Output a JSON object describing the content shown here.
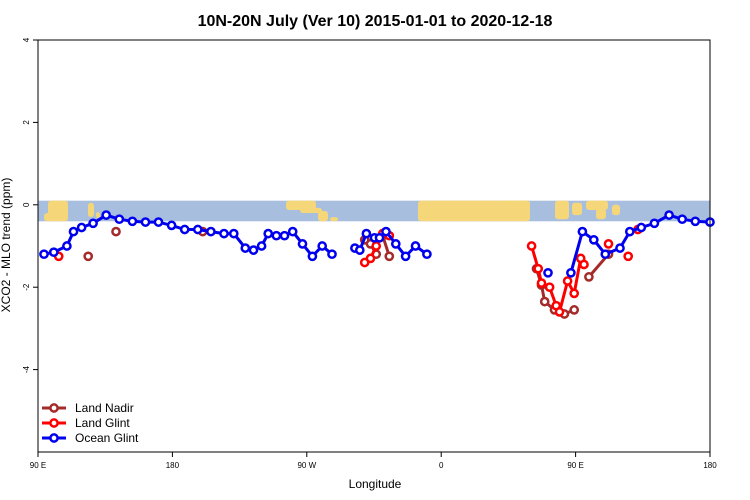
{
  "chart_data": {
    "type": "line",
    "title": "10N-20N July (Ver 10)   2015-01-01 to 2020-12-18",
    "xlabel": "Longitude",
    "ylabel": "XCO2 - MLO trend (ppm)",
    "xlim": [
      90,
      450
    ],
    "ylim": [
      -6,
      4
    ],
    "x_ticks": [
      {
        "value": 90,
        "label": "90 E"
      },
      {
        "value": 180,
        "label": "180"
      },
      {
        "value": 270,
        "label": "90 W"
      },
      {
        "value": 360,
        "label": "0"
      },
      {
        "value": 450,
        "label": "90 E"
      },
      {
        "value": 540,
        "label": "180"
      }
    ],
    "y_ticks": [
      {
        "value": 4,
        "label": "4"
      },
      {
        "value": 2,
        "label": "2"
      },
      {
        "value": 0,
        "label": "0"
      },
      {
        "value": -2,
        "label": "-2"
      },
      {
        "value": -4,
        "label": "-4"
      }
    ],
    "grid": false,
    "legend_position": "bottom-left",
    "colors": {
      "land_nadir": "#a52a2a",
      "land_glint": "#ff0000",
      "ocean_glint": "#0000ee",
      "map_ocean": "#a8bedf",
      "map_land": "#f5d77a"
    },
    "map_band_y": [
      0.1,
      -0.4
    ],
    "series": [
      {
        "name": "Land Nadir",
        "color": "#a52a2a",
        "segments": [
          [
            [
              270,
              -0.85
            ],
            [
              273.5,
              -0.95
            ],
            [
              277,
              -1.2
            ]
          ],
          [
            [
              281,
              -0.75
            ],
            [
              285,
              -1.25
            ]
          ],
          [
            [
              375,
              -1.55
            ],
            [
              378,
              -1.95
            ],
            [
              380,
              -2.35
            ],
            [
              386,
              -2.55
            ],
            [
              392,
              -2.65
            ],
            [
              398,
              -2.55
            ]
          ],
          [
            [
              407,
              -1.75
            ],
            [
              419,
              -1.2
            ]
          ]
        ],
        "points": [
          [
            101,
            -1.25
          ],
          [
            118,
            -0.65
          ],
          [
            171,
            -0.65
          ]
        ]
      },
      {
        "name": "Land Glint",
        "color": "#ff0000",
        "segments": [
          [
            [
              270,
              -1.4
            ],
            [
              273.5,
              -1.3
            ],
            [
              277,
              -1.0
            ],
            [
              281,
              -0.7
            ],
            [
              285,
              -0.75
            ]
          ],
          [
            [
              372,
              -1.0
            ],
            [
              376,
              -1.55
            ],
            [
              378,
              -1.9
            ],
            [
              383,
              -2.0
            ],
            [
              387,
              -2.45
            ],
            [
              389,
              -2.6
            ],
            [
              394,
              -1.85
            ],
            [
              398,
              -2.15
            ],
            [
              402,
              -1.3
            ]
          ],
          [
            [
              419,
              -0.95
            ]
          ]
        ],
        "points": [
          [
            83,
            -1.25
          ],
          [
            404,
            -1.45
          ],
          [
            431,
            -1.25
          ],
          [
            437,
            -0.6
          ]
        ]
      },
      {
        "name": "Ocean Glint",
        "color": "#0000ee",
        "segments": [
          [
            [
              74,
              -1.2
            ],
            [
              80,
              -1.15
            ],
            [
              88,
              -1.0
            ],
            [
              92,
              -0.65
            ],
            [
              97,
              -0.55
            ],
            [
              104,
              -0.45
            ],
            [
              112,
              -0.25
            ],
            [
              120,
              -0.35
            ],
            [
              128,
              -0.4
            ],
            [
              136,
              -0.42
            ],
            [
              144,
              -0.42
            ],
            [
              152,
              -0.5
            ],
            [
              160,
              -0.6
            ],
            [
              168,
              -0.6
            ],
            [
              176,
              -0.65
            ],
            [
              184,
              -0.7
            ],
            [
              190,
              -0.7
            ],
            [
              197,
              -1.05
            ],
            [
              202,
              -1.1
            ],
            [
              207,
              -1.0
            ],
            [
              211,
              -0.7
            ],
            [
              216,
              -0.75
            ],
            [
              221,
              -0.75
            ],
            [
              226,
              -0.65
            ],
            [
              232,
              -0.95
            ],
            [
              238,
              -1.25
            ],
            [
              244,
              -1.0
            ],
            [
              250,
              -1.2
            ]
          ],
          [
            [
              264,
              -1.05
            ],
            [
              267,
              -1.1
            ],
            [
              271,
              -0.7
            ],
            [
              276,
              -0.8
            ],
            [
              279,
              -0.8
            ],
            [
              283,
              -0.65
            ],
            [
              289,
              -0.95
            ],
            [
              295,
              -1.25
            ],
            [
              301,
              -1.0
            ],
            [
              308,
              -1.2
            ]
          ],
          [
            [
              382,
              -1.65
            ]
          ],
          [
            [
              396,
              -1.65
            ],
            [
              403,
              -0.65
            ],
            [
              410,
              -0.85
            ],
            [
              417,
              -1.2
            ],
            [
              426,
              -1.05
            ],
            [
              432,
              -0.65
            ],
            [
              439,
              -0.55
            ],
            [
              447,
              -0.45
            ],
            [
              456,
              -0.25
            ],
            [
              464,
              -0.35
            ],
            [
              472,
              -0.4
            ],
            [
              481,
              -0.42
            ]
          ]
        ],
        "points": []
      }
    ]
  }
}
